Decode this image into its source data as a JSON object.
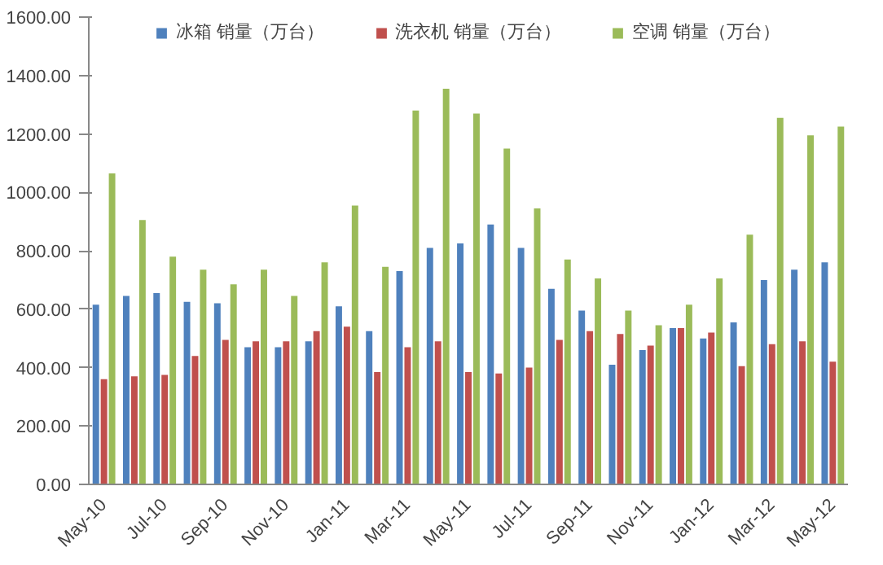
{
  "chart_data": {
    "type": "bar",
    "categories": [
      "May-10",
      null,
      "Jul-10",
      null,
      "Sep-10",
      null,
      "Nov-10",
      null,
      "Jan-11",
      null,
      "Mar-11",
      null,
      "May-11",
      null,
      "Jul-11",
      null,
      "Sep-11",
      null,
      "Nov-11",
      null,
      "Jan-12",
      null,
      "Mar-12",
      null,
      "May-12"
    ],
    "series": [
      {
        "name": "冰箱 销量（万台）",
        "color": "#4f81bd",
        "values": [
          615,
          645,
          655,
          625,
          620,
          470,
          470,
          490,
          610,
          525,
          730,
          810,
          825,
          890,
          810,
          670,
          595,
          410,
          460,
          535,
          500,
          555,
          700,
          735,
          760
        ]
      },
      {
        "name": "洗衣机 销量（万台）",
        "color": "#c0504d",
        "values": [
          360,
          370,
          375,
          440,
          495,
          490,
          490,
          525,
          540,
          385,
          470,
          490,
          385,
          380,
          400,
          495,
          525,
          515,
          475,
          535,
          520,
          405,
          480,
          490,
          420
        ]
      },
      {
        "name": "空调 销量（万台）",
        "color": "#9bbb59",
        "values": [
          1065,
          905,
          780,
          735,
          685,
          735,
          645,
          760,
          955,
          745,
          1280,
          1355,
          1270,
          1150,
          945,
          770,
          705,
          595,
          545,
          615,
          705,
          855,
          1255,
          1195,
          1225
        ]
      }
    ],
    "ylim": [
      0,
      1600
    ],
    "yticks": [
      {
        "value": 0,
        "label": "0.00"
      },
      {
        "value": 200,
        "label": "200.00"
      },
      {
        "value": 400,
        "label": "400.00"
      },
      {
        "value": 600,
        "label": "600.00"
      },
      {
        "value": 800,
        "label": "800.00"
      },
      {
        "value": 1000,
        "label": "1000.00"
      },
      {
        "value": 1200,
        "label": "1200.00"
      },
      {
        "value": 1400,
        "label": "1400.00"
      },
      {
        "value": 1600,
        "label": "1600.00"
      }
    ],
    "grid": false,
    "legend": "top"
  }
}
